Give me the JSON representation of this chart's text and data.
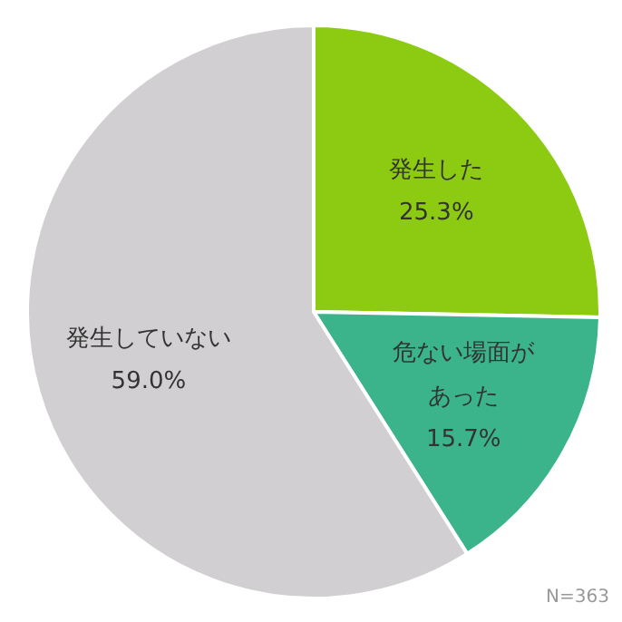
{
  "chart_data": {
    "type": "pie",
    "categories": [
      "発生した",
      "危ない場面があった",
      "発生していない"
    ],
    "values": [
      25.3,
      15.7,
      59.0
    ],
    "colors": [
      "#8ccb11",
      "#3bb48c",
      "#d1cfd1"
    ],
    "value_labels": [
      "25.3%",
      "15.7%",
      "59.0%"
    ],
    "annotations": [
      "N=363"
    ]
  }
}
